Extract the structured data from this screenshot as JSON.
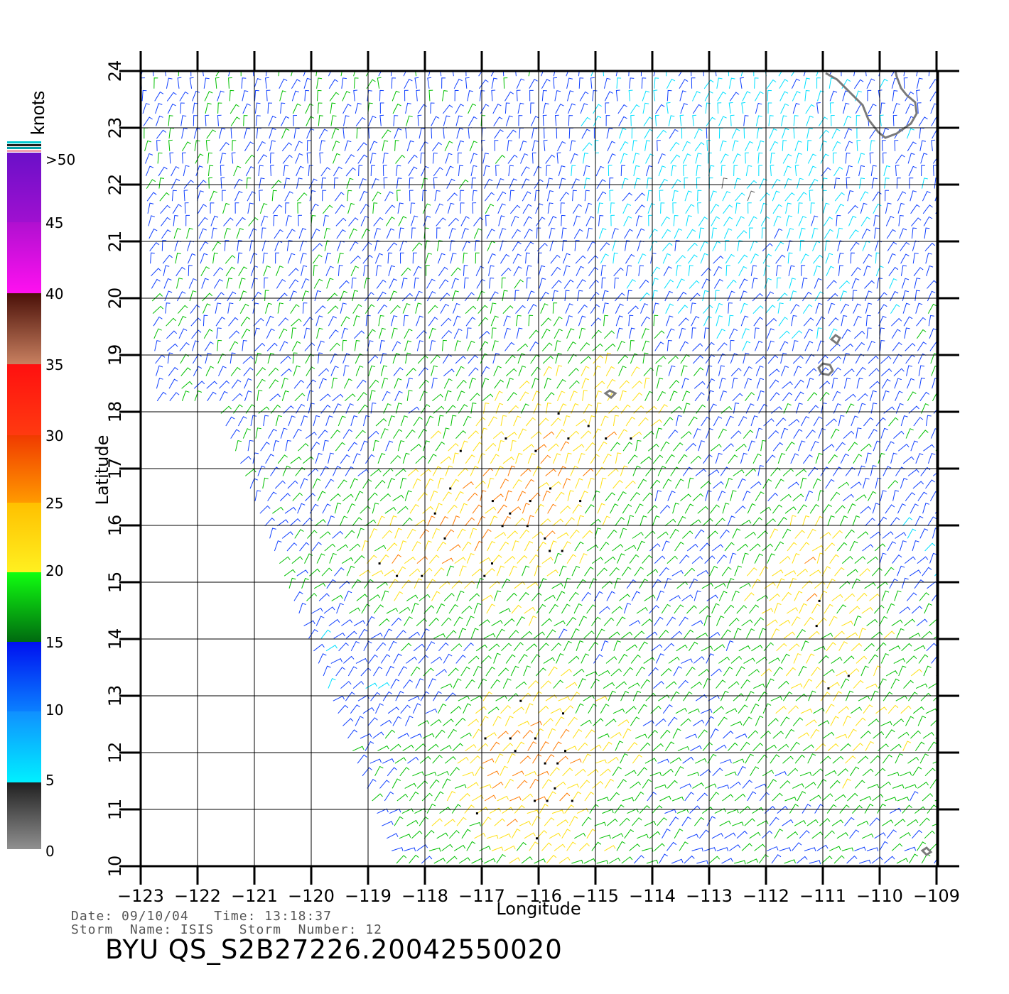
{
  "colorbar": {
    "unit": "knots",
    "labels": [
      ">50",
      "45",
      "40",
      "35",
      "30",
      "25",
      "20",
      "15",
      "10",
      "5",
      "0"
    ],
    "colors": {
      "purple": "#6a10c8",
      "magenta": "#e010e0",
      "brown": "#8a5030",
      "red": "#ff1010",
      "orange": "#ff7a00",
      "yellow": "#ffe010",
      "green": "#00c000",
      "blue": "#1040ff",
      "cyan": "#00e0ff",
      "gray": "#606060"
    }
  },
  "axes": {
    "xlabel": "Longitude",
    "ylabel": "Latitude",
    "lon_ticks": [
      "−123",
      "−122",
      "−121",
      "−120",
      "−119",
      "−118",
      "−117",
      "−116",
      "−115",
      "−114",
      "−113",
      "−112",
      "−111",
      "−110",
      "−109"
    ],
    "lat_ticks": [
      "10",
      "11",
      "12",
      "13",
      "14",
      "15",
      "16",
      "17",
      "18",
      "19",
      "20",
      "21",
      "22",
      "23",
      "24"
    ],
    "lon_range": [
      -123,
      -108.5
    ],
    "lat_range": [
      10,
      24
    ]
  },
  "info": {
    "date_label": "Date:",
    "date": "09/10/04",
    "time_label": "Time:",
    "time": "13:18:37",
    "storm_name_label": "Storm  Name:",
    "storm_name": "ISIS",
    "storm_number_label": "Storm  Number:",
    "storm_number": "12",
    "title": "BYU  QS_S2B27226.20042550020"
  }
}
